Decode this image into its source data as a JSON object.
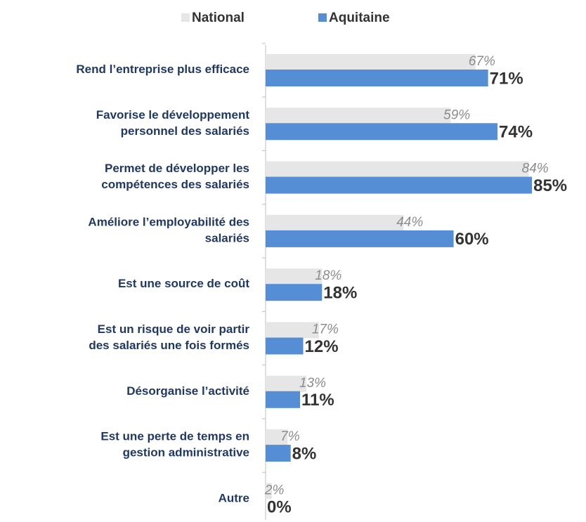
{
  "chart_data": {
    "type": "bar",
    "orientation": "horizontal",
    "categories": [
      [
        "Rend l’entreprise plus efficace"
      ],
      [
        "Favorise le développement",
        "personnel des salariés"
      ],
      [
        "Permet de développer les",
        "compétences des salariés"
      ],
      [
        "Améliore l’employabilité des",
        "salariés"
      ],
      [
        "Est une source de coût"
      ],
      [
        "Est un risque de voir partir",
        "des salariés une fois formés"
      ],
      [
        "Désorganise l’activité"
      ],
      [
        "Est une perte de temps en",
        "gestion administrative"
      ],
      [
        "Autre"
      ]
    ],
    "series": [
      {
        "name": "National",
        "color": "#e6e6e6",
        "values": [
          67,
          59,
          84,
          44,
          18,
          17,
          13,
          7,
          2
        ],
        "value_labels": [
          "67%",
          "59%",
          "84%",
          "44%",
          "18%",
          "17%",
          "13%",
          "7%",
          "2%"
        ]
      },
      {
        "name": "Aquitaine",
        "color": "#558ed5",
        "values": [
          71,
          74,
          85,
          60,
          18,
          12,
          11,
          8,
          0
        ],
        "value_labels": [
          "71%",
          "74%",
          "85%",
          "60%",
          "18%",
          "12%",
          "11%",
          "8%",
          "0%"
        ]
      }
    ],
    "xlim": [
      0,
      100
    ],
    "legend": "top"
  }
}
